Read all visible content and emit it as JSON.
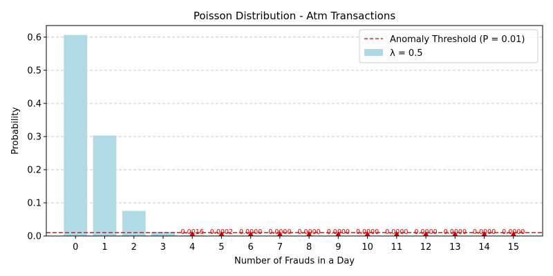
{
  "chart_data": {
    "type": "bar",
    "title": "Poisson Distribution - Atm Transactions",
    "xlabel": "Number of Frauds in a Day",
    "ylabel": "Probability",
    "categories": [
      0,
      1,
      2,
      3,
      4,
      5,
      6,
      7,
      8,
      9,
      10,
      11,
      12,
      13,
      14,
      15
    ],
    "series": [
      {
        "name": "λ = 0.5",
        "color": "#add8e6",
        "values": [
          0.6065,
          0.3033,
          0.0758,
          0.0126,
          0.0016,
          0.0002,
          0.0,
          0.0,
          0.0,
          0.0,
          0.0,
          0.0,
          0.0,
          0.0,
          0.0,
          0.0
        ]
      }
    ],
    "threshold": {
      "label": "Anomaly Threshold (P = 0.01)",
      "value": 0.01,
      "color": "#d62728"
    },
    "anomalies": {
      "categories": [
        4,
        5,
        6,
        7,
        8,
        9,
        10,
        11,
        12,
        13,
        14,
        15
      ],
      "labels": [
        "0.0016",
        "0.0002",
        "0.0000",
        "0.0000",
        "0.0000",
        "0.0000",
        "0.0000",
        "0.0000",
        "0.0000",
        "0.0000",
        "0.0000",
        "0.0000"
      ],
      "color": "#cc0000"
    },
    "ylim": [
      0,
      0.635
    ],
    "yticks": [
      "0.0",
      "0.1",
      "0.2",
      "0.3",
      "0.4",
      "0.5",
      "0.6"
    ],
    "ytick_values": [
      0,
      0.1,
      0.2,
      0.3,
      0.4,
      0.5,
      0.6
    ],
    "xlim": [
      -1.0,
      16.0
    ],
    "grid": "y-dashed",
    "legend_position": "upper-right"
  }
}
